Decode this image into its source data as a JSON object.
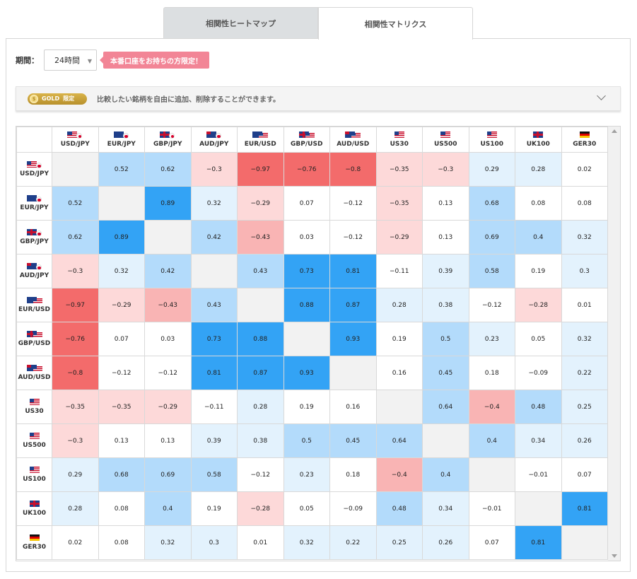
{
  "tabs": [
    {
      "label": "相関性ヒートマップ",
      "active": false
    },
    {
      "label": "相関性マトリクス",
      "active": true
    }
  ],
  "period": {
    "label": "期間：",
    "selected": "24時間",
    "notice": "本番口座をお持ちの方限定！"
  },
  "gold_bar": {
    "badge_main": "GOLD",
    "badge_sub": "限定",
    "text": "比較したい銘柄を自由に追加、削除することができます。"
  },
  "colors": {
    "pos_strong": "#33a3f5",
    "pos_mid": "#b3dbfb",
    "pos_weak": "#e3f2fd",
    "neg_strong": "#f36b6b",
    "neg_mid": "#f9b4b4",
    "neg_weak": "#fdd9d9",
    "neutral": "#ffffff",
    "diag": "#f2f2f2"
  },
  "symbols": [
    {
      "label": "USD/JPY",
      "flags": [
        "us",
        "jp"
      ]
    },
    {
      "label": "EUR/JPY",
      "flags": [
        "eu",
        "jp"
      ]
    },
    {
      "label": "GBP/JPY",
      "flags": [
        "gb",
        "jp"
      ]
    },
    {
      "label": "AUD/JPY",
      "flags": [
        "au",
        "jp"
      ]
    },
    {
      "label": "EUR/USD",
      "flags": [
        "eu",
        "us"
      ]
    },
    {
      "label": "GBP/USD",
      "flags": [
        "gb",
        "us"
      ]
    },
    {
      "label": "AUD/USD",
      "flags": [
        "au",
        "us"
      ]
    },
    {
      "label": "US30",
      "flags": [
        "us"
      ]
    },
    {
      "label": "US500",
      "flags": [
        "us"
      ]
    },
    {
      "label": "US100",
      "flags": [
        "us"
      ]
    },
    {
      "label": "UK100",
      "flags": [
        "gb"
      ]
    },
    {
      "label": "GER30",
      "flags": [
        "de"
      ]
    }
  ],
  "matrix": [
    [
      null,
      0.52,
      0.62,
      -0.3,
      -0.97,
      -0.76,
      -0.8,
      -0.35,
      -0.3,
      0.29,
      0.28,
      0.02
    ],
    [
      0.52,
      null,
      0.89,
      0.32,
      -0.29,
      0.07,
      -0.12,
      -0.35,
      0.13,
      0.68,
      0.08,
      0.08
    ],
    [
      0.62,
      0.89,
      null,
      0.42,
      -0.43,
      0.03,
      -0.12,
      -0.29,
      0.13,
      0.69,
      0.4,
      0.32
    ],
    [
      -0.3,
      0.32,
      0.42,
      null,
      0.43,
      0.73,
      0.81,
      -0.11,
      0.39,
      0.58,
      0.19,
      0.3
    ],
    [
      -0.97,
      -0.29,
      -0.43,
      0.43,
      null,
      0.88,
      0.87,
      0.28,
      0.38,
      -0.12,
      -0.28,
      0.01
    ],
    [
      -0.76,
      0.07,
      0.03,
      0.73,
      0.88,
      null,
      0.93,
      0.19,
      0.5,
      0.23,
      0.05,
      0.32
    ],
    [
      -0.8,
      -0.12,
      -0.12,
      0.81,
      0.87,
      0.93,
      null,
      0.16,
      0.45,
      0.18,
      -0.09,
      0.22
    ],
    [
      -0.35,
      -0.35,
      -0.29,
      -0.11,
      0.28,
      0.19,
      0.16,
      null,
      0.64,
      -0.4,
      0.48,
      0.25
    ],
    [
      -0.3,
      0.13,
      0.13,
      0.39,
      0.38,
      0.5,
      0.45,
      0.64,
      null,
      0.4,
      0.34,
      0.26
    ],
    [
      0.29,
      0.68,
      0.69,
      0.58,
      -0.12,
      0.23,
      0.18,
      -0.4,
      0.4,
      null,
      -0.01,
      0.07
    ],
    [
      0.28,
      0.08,
      0.4,
      0.19,
      -0.28,
      0.05,
      -0.09,
      0.48,
      0.34,
      -0.01,
      null,
      0.81
    ],
    [
      0.02,
      0.08,
      0.32,
      0.3,
      0.01,
      0.32,
      0.22,
      0.25,
      0.26,
      0.07,
      0.81,
      null
    ]
  ]
}
